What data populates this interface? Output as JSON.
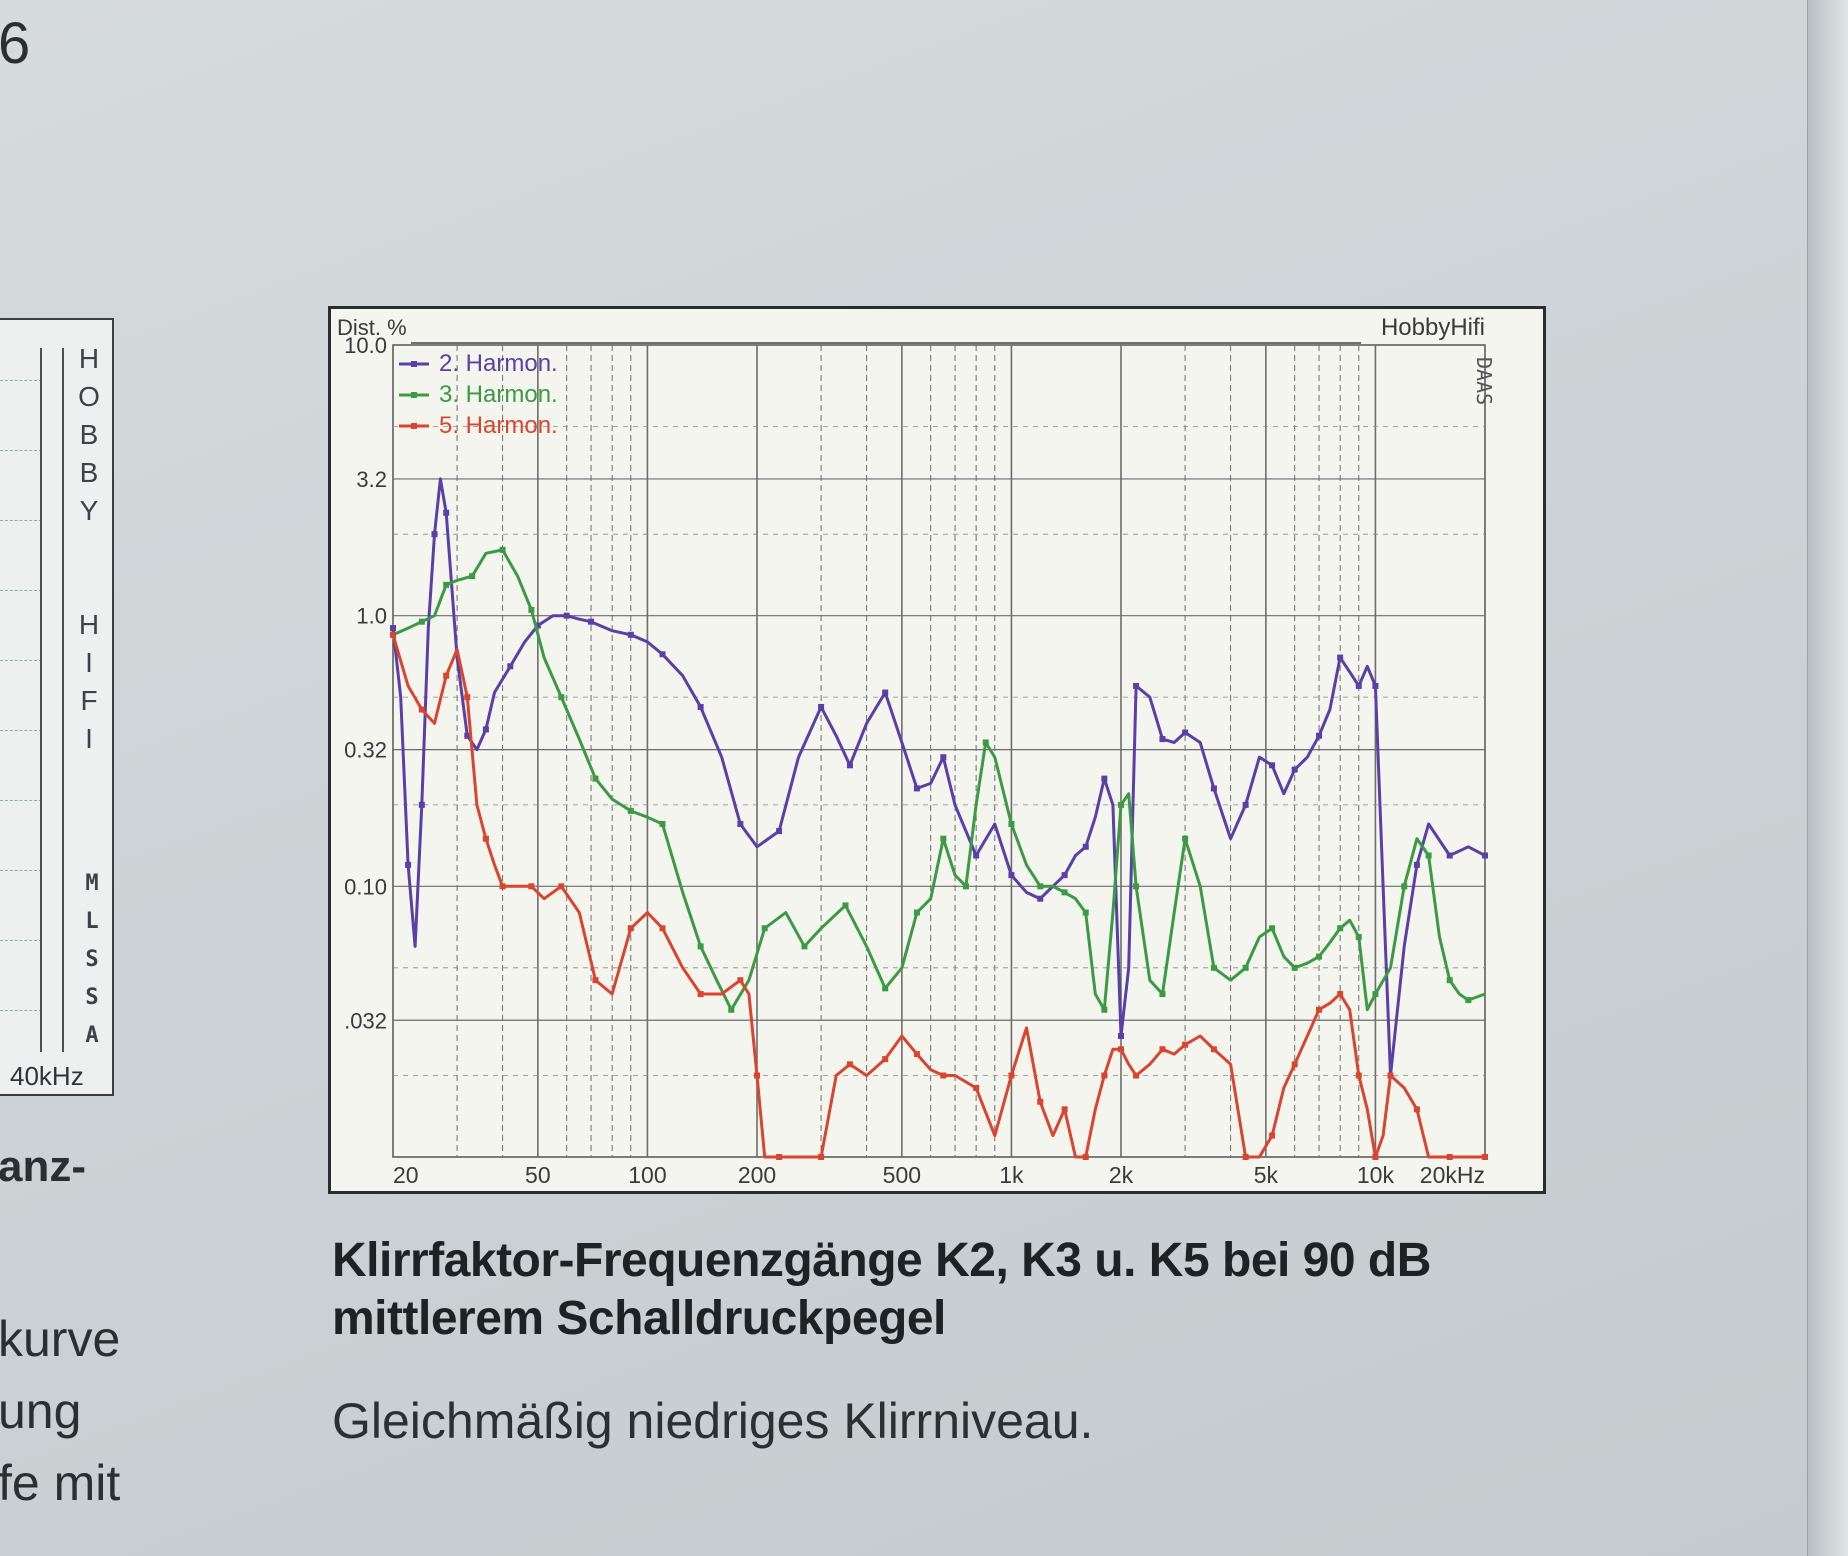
{
  "page": {
    "corner_digit": "6",
    "caption_title": "Klirrfaktor-Frequenzgänge K2, K3 u. K5 bei 90 dB mittlerem Schalldruckpegel",
    "caption_text": "Gleichmäßig niedriges Klirrniveau."
  },
  "left_chart": {
    "brand_vertical": "HOBBY HIFI",
    "brand_vertical2": "MLSSA",
    "axis_label": "40kHz",
    "text_fragments": [
      "anz-",
      "kurve",
      "ung",
      "fe mit"
    ]
  },
  "colors": {
    "k2": "#5a3fa6",
    "k3": "#3d9a44",
    "k5": "#d9452e",
    "grid": "#6d6d6d",
    "background": "#f3f5ee"
  },
  "chart_data": {
    "type": "line",
    "title": "",
    "brand": "HobbyHifi",
    "watermark": "DAAS",
    "ylabel": "Dist. %",
    "xlabel": "",
    "x_scale": "log",
    "y_scale": "log",
    "xlim": [
      20,
      20000
    ],
    "ylim": [
      0.01,
      10.0
    ],
    "x_ticks": [
      {
        "value": 20,
        "label": "20"
      },
      {
        "value": 50,
        "label": "50"
      },
      {
        "value": 100,
        "label": "100"
      },
      {
        "value": 200,
        "label": "200"
      },
      {
        "value": 500,
        "label": "500"
      },
      {
        "value": 1000,
        "label": "1k"
      },
      {
        "value": 2000,
        "label": "2k"
      },
      {
        "value": 5000,
        "label": "5k"
      },
      {
        "value": 10000,
        "label": "10k"
      },
      {
        "value": 20000,
        "label": "20kHz"
      }
    ],
    "y_ticks": [
      {
        "value": 10.0,
        "label": "10.0"
      },
      {
        "value": 3.2,
        "label": "3.2"
      },
      {
        "value": 1.0,
        "label": "1.0"
      },
      {
        "value": 0.32,
        "label": "0.32"
      },
      {
        "value": 0.1,
        "label": "0.10"
      },
      {
        "value": 0.032,
        "label": ".032"
      }
    ],
    "grid": true,
    "legend_position": "top-left",
    "series": [
      {
        "name": "2. Harmon.",
        "color": "#5a3fa6",
        "x": [
          20,
          21,
          22,
          23,
          24,
          25,
          26,
          27,
          28,
          30,
          32,
          34,
          36,
          38,
          42,
          46,
          50,
          55,
          60,
          65,
          70,
          80,
          90,
          100,
          110,
          125,
          140,
          160,
          180,
          200,
          230,
          260,
          300,
          330,
          360,
          400,
          450,
          500,
          550,
          600,
          650,
          700,
          800,
          900,
          1000,
          1100,
          1200,
          1300,
          1400,
          1500,
          1600,
          1700,
          1800,
          1900,
          2000,
          2100,
          2200,
          2400,
          2600,
          2800,
          3000,
          3300,
          3600,
          4000,
          4400,
          4800,
          5200,
          5600,
          6000,
          6500,
          7000,
          7500,
          8000,
          8500,
          9000,
          9500,
          10000,
          10500,
          11000,
          12000,
          13000,
          14000,
          16000,
          18000,
          20000
        ],
        "y": [
          0.9,
          0.5,
          0.12,
          0.06,
          0.2,
          0.9,
          2.0,
          3.2,
          2.4,
          0.7,
          0.36,
          0.32,
          0.38,
          0.52,
          0.65,
          0.8,
          0.92,
          1.0,
          1.0,
          0.97,
          0.95,
          0.88,
          0.85,
          0.8,
          0.72,
          0.6,
          0.46,
          0.3,
          0.17,
          0.14,
          0.16,
          0.3,
          0.46,
          0.36,
          0.28,
          0.4,
          0.52,
          0.34,
          0.23,
          0.24,
          0.3,
          0.2,
          0.13,
          0.17,
          0.11,
          0.095,
          0.09,
          0.1,
          0.11,
          0.13,
          0.14,
          0.18,
          0.25,
          0.2,
          0.028,
          0.05,
          0.55,
          0.5,
          0.35,
          0.34,
          0.37,
          0.34,
          0.23,
          0.15,
          0.2,
          0.3,
          0.28,
          0.22,
          0.27,
          0.3,
          0.36,
          0.45,
          0.7,
          0.62,
          0.55,
          0.65,
          0.55,
          0.1,
          0.02,
          0.06,
          0.12,
          0.17,
          0.13,
          0.14,
          0.13
        ]
      },
      {
        "name": "3. Harmon.",
        "color": "#3d9a44",
        "x": [
          20,
          22,
          24,
          26,
          28,
          30,
          33,
          36,
          40,
          44,
          48,
          52,
          58,
          65,
          72,
          80,
          90,
          100,
          110,
          125,
          140,
          155,
          170,
          190,
          210,
          240,
          270,
          300,
          350,
          400,
          450,
          500,
          550,
          600,
          650,
          700,
          750,
          800,
          850,
          900,
          1000,
          1100,
          1200,
          1300,
          1400,
          1500,
          1600,
          1700,
          1800,
          1900,
          2000,
          2100,
          2200,
          2400,
          2600,
          2800,
          3000,
          3300,
          3600,
          4000,
          4400,
          4800,
          5200,
          5600,
          6000,
          6500,
          7000,
          7500,
          8000,
          8500,
          9000,
          9500,
          10000,
          11000,
          12000,
          13000,
          14000,
          15000,
          16000,
          17000,
          18000,
          20000
        ],
        "y": [
          0.85,
          0.9,
          0.95,
          1.0,
          1.3,
          1.35,
          1.4,
          1.7,
          1.75,
          1.4,
          1.05,
          0.7,
          0.5,
          0.35,
          0.25,
          0.21,
          0.19,
          0.18,
          0.17,
          0.095,
          0.06,
          0.045,
          0.035,
          0.045,
          0.07,
          0.08,
          0.06,
          0.07,
          0.085,
          0.06,
          0.042,
          0.05,
          0.08,
          0.09,
          0.15,
          0.11,
          0.1,
          0.2,
          0.34,
          0.3,
          0.17,
          0.12,
          0.1,
          0.1,
          0.095,
          0.09,
          0.08,
          0.04,
          0.035,
          0.08,
          0.2,
          0.22,
          0.1,
          0.045,
          0.04,
          0.08,
          0.15,
          0.1,
          0.05,
          0.045,
          0.05,
          0.065,
          0.07,
          0.055,
          0.05,
          0.052,
          0.055,
          0.062,
          0.07,
          0.075,
          0.065,
          0.035,
          0.04,
          0.05,
          0.1,
          0.15,
          0.13,
          0.065,
          0.045,
          0.04,
          0.038,
          0.04
        ]
      },
      {
        "name": "5. Harmon.",
        "color": "#d9452e",
        "x": [
          20,
          22,
          24,
          26,
          28,
          30,
          32,
          34,
          36,
          38,
          40,
          44,
          48,
          52,
          58,
          65,
          72,
          80,
          90,
          100,
          110,
          125,
          140,
          160,
          180,
          190,
          200,
          210,
          230,
          260,
          300,
          330,
          360,
          400,
          450,
          500,
          550,
          600,
          650,
          700,
          800,
          900,
          1000,
          1100,
          1200,
          1300,
          1400,
          1500,
          1600,
          1700,
          1800,
          1900,
          2000,
          2100,
          2200,
          2400,
          2600,
          2800,
          3000,
          3300,
          3600,
          4000,
          4400,
          4800,
          5200,
          5600,
          6000,
          6500,
          7000,
          7500,
          8000,
          8500,
          9000,
          9500,
          10000,
          10500,
          11000,
          12000,
          13000,
          14000,
          16000,
          18000,
          20000
        ],
        "y": [
          0.85,
          0.55,
          0.45,
          0.4,
          0.6,
          0.75,
          0.5,
          0.2,
          0.15,
          0.12,
          0.1,
          0.1,
          0.1,
          0.09,
          0.1,
          0.08,
          0.045,
          0.04,
          0.07,
          0.08,
          0.07,
          0.05,
          0.04,
          0.04,
          0.045,
          0.04,
          0.02,
          0.01,
          0.01,
          0.01,
          0.01,
          0.02,
          0.022,
          0.02,
          0.023,
          0.028,
          0.024,
          0.021,
          0.02,
          0.02,
          0.018,
          0.012,
          0.02,
          0.03,
          0.016,
          0.012,
          0.015,
          0.01,
          0.01,
          0.015,
          0.02,
          0.025,
          0.025,
          0.022,
          0.02,
          0.022,
          0.025,
          0.024,
          0.026,
          0.028,
          0.025,
          0.022,
          0.01,
          0.01,
          0.012,
          0.018,
          0.022,
          0.028,
          0.035,
          0.037,
          0.04,
          0.035,
          0.02,
          0.015,
          0.01,
          0.012,
          0.02,
          0.018,
          0.015,
          0.01,
          0.01,
          0.01,
          0.01
        ]
      }
    ]
  }
}
